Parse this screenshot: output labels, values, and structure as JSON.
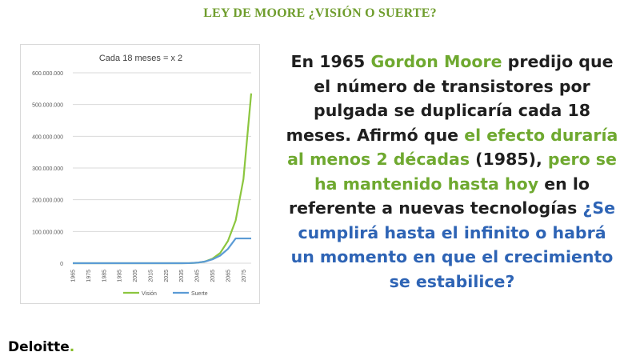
{
  "slide": {
    "title": "LEY DE MOORE ¿VISIÓN O SUERTE?"
  },
  "body_text": {
    "t1": "En 1965 ",
    "t2": "Gordon Moore",
    "t3": " predijo que el número de transistores por pulgada se duplicaría cada 18 meses. Afirmó que ",
    "t4": "el efecto duraría al menos 2 décadas",
    "t5": " (1985), ",
    "t6": "pero se ha mantenido hasta hoy",
    "t7": " en lo referente a nuevas tecnologías ",
    "t8": "¿Se cumplirá hasta el infinito o habrá un momento en que el crecimiento se estabilice?"
  },
  "brand": {
    "name": "Deloitte",
    "dot": "."
  },
  "colors": {
    "title_green": "#6f9d2d",
    "highlight_green": "#6fa930",
    "highlight_blue": "#2e64b5",
    "vision_series": "#8cc63f",
    "suerte_series": "#5b9bd5",
    "brand_green": "#86bc25"
  },
  "chart_data": {
    "type": "line",
    "title": "Cada 18 meses = x 2",
    "xlabel": "",
    "ylabel": "",
    "x": [
      1965,
      1970,
      1975,
      1980,
      1985,
      1990,
      1995,
      2000,
      2005,
      2010,
      2015,
      2020,
      2025,
      2030,
      2035,
      2040,
      2045,
      2050,
      2055,
      2060,
      2065,
      2070,
      2075,
      2080
    ],
    "x_tick_labels": [
      "1965",
      "1975",
      "1985",
      "1995",
      "2005",
      "2015",
      "2025",
      "2035",
      "2045",
      "2055",
      "2065",
      "2075"
    ],
    "y_tick_labels": [
      "0",
      "100.000.000",
      "200.000.000",
      "300.000.000",
      "400.000.000",
      "500.000.000",
      "600.000.000"
    ],
    "ylim": [
      0,
      600000000
    ],
    "grid": true,
    "legend_position": "bottom",
    "series": [
      {
        "name": "Visión",
        "color": "#8cc63f",
        "values": [
          0,
          0,
          0,
          0,
          0,
          0,
          0,
          0,
          0,
          0,
          0,
          0,
          0,
          0,
          0,
          200000,
          1500000,
          5000000,
          14000000,
          32000000,
          70000000,
          135000000,
          265000000,
          535000000
        ]
      },
      {
        "name": "Suerte",
        "color": "#5b9bd5",
        "values": [
          0,
          0,
          0,
          0,
          0,
          0,
          0,
          0,
          0,
          0,
          0,
          0,
          0,
          0,
          0,
          200000,
          1500000,
          5000000,
          12000000,
          24000000,
          45000000,
          78000000,
          78000000,
          78000000
        ]
      }
    ]
  }
}
